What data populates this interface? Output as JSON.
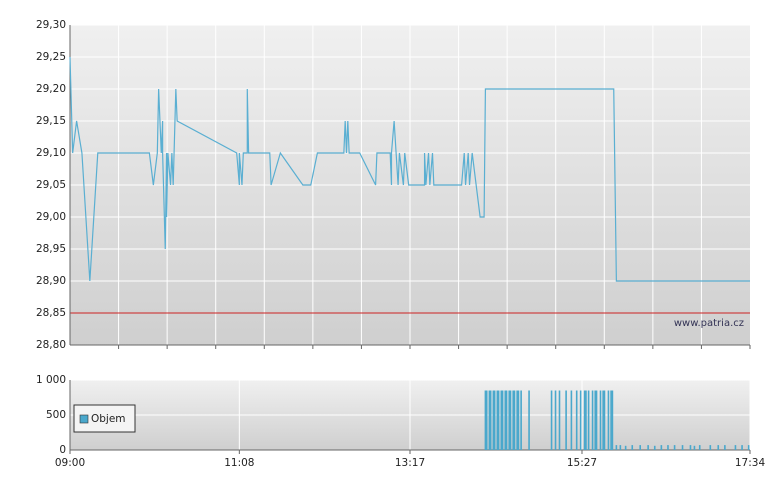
{
  "chart_data": [
    {
      "type": "line",
      "color": "#5aafd2",
      "xlim": [
        "09:00",
        "17:34"
      ],
      "ylim": [
        28.8,
        29.3
      ],
      "yticks": [
        {
          "value": 28.8,
          "label": "28,80"
        },
        {
          "value": 28.85,
          "label": "28,85"
        },
        {
          "value": 28.9,
          "label": "28,90"
        },
        {
          "value": 28.95,
          "label": "28,95"
        },
        {
          "value": 29.0,
          "label": "29,00"
        },
        {
          "value": 29.05,
          "label": "29,05"
        },
        {
          "value": 29.1,
          "label": "29,10"
        },
        {
          "value": 29.15,
          "label": "29,15"
        },
        {
          "value": 29.2,
          "label": "29,20"
        },
        {
          "value": 29.25,
          "label": "29,25"
        },
        {
          "value": 29.3,
          "label": "29,30"
        }
      ],
      "grid": true,
      "reference_line": {
        "value": 28.85,
        "color": "#cc2222"
      },
      "watermark": "www.patria.cz",
      "x": [
        "09:00",
        "09:02",
        "09:05",
        "09:09",
        "09:15",
        "09:21",
        "10:00",
        "10:03",
        "10:06",
        "10:07",
        "10:09",
        "10:10",
        "10:10",
        "10:12",
        "10:13",
        "10:13",
        "10:14",
        "10:16",
        "10:17",
        "10:18",
        "10:20",
        "10:21",
        "11:06",
        "11:08",
        "11:08",
        "11:10",
        "11:11",
        "11:14",
        "11:14",
        "11:15",
        "11:31",
        "11:32",
        "11:39",
        "11:56",
        "12:02",
        "12:07",
        "12:27",
        "12:28",
        "12:29",
        "12:30",
        "12:31",
        "12:39",
        "12:51",
        "12:52",
        "13:02",
        "13:03",
        "13:03",
        "13:05",
        "13:08",
        "13:09",
        "13:12",
        "13:13",
        "13:16",
        "13:28",
        "13:28",
        "13:29",
        "13:31",
        "13:32",
        "13:34",
        "13:35",
        "13:56",
        "13:58",
        "13:59",
        "14:01",
        "14:02",
        "14:04",
        "14:07",
        "14:10",
        "14:13",
        "14:14",
        "15:51",
        "15:53",
        "17:34"
      ],
      "values": [
        29.25,
        29.1,
        29.15,
        29.1,
        28.9,
        29.1,
        29.1,
        29.05,
        29.1,
        29.2,
        29.1,
        29.15,
        29.1,
        28.95,
        29.1,
        29.0,
        29.1,
        29.05,
        29.1,
        29.05,
        29.2,
        29.15,
        29.1,
        29.05,
        29.1,
        29.05,
        29.1,
        29.1,
        29.2,
        29.1,
        29.1,
        29.05,
        29.1,
        29.05,
        29.05,
        29.1,
        29.1,
        29.15,
        29.1,
        29.15,
        29.1,
        29.1,
        29.05,
        29.1,
        29.1,
        29.05,
        29.1,
        29.15,
        29.05,
        29.1,
        29.05,
        29.1,
        29.05,
        29.05,
        29.1,
        29.05,
        29.1,
        29.05,
        29.1,
        29.05,
        29.05,
        29.1,
        29.05,
        29.1,
        29.05,
        29.1,
        29.05,
        29.0,
        29.0,
        29.2,
        29.2,
        28.9,
        28.9
      ]
    },
    {
      "type": "bar",
      "xlim": [
        "09:00",
        "17:34"
      ],
      "xticks": [
        "09:00",
        "11:08",
        "13:17",
        "15:27",
        "17:34"
      ],
      "ylim": [
        0,
        1000
      ],
      "yticks": [
        0,
        500,
        {
          "value": 1000,
          "label": "1 000"
        }
      ],
      "grid": true,
      "legend": "left",
      "x": [
        "14:14",
        "14:15",
        "14:17",
        "14:18",
        "14:20",
        "14:21",
        "14:23",
        "14:24",
        "14:26",
        "14:27",
        "14:29",
        "14:30",
        "14:32",
        "14:33",
        "14:35",
        "14:36",
        "14:38",
        "14:39",
        "14:41",
        "14:47",
        "15:04",
        "15:07",
        "15:10",
        "15:15",
        "15:19",
        "15:23",
        "15:26",
        "15:29",
        "15:30",
        "15:32",
        "15:35",
        "15:37",
        "15:38",
        "15:41",
        "15:43",
        "15:44",
        "15:47",
        "15:49",
        "15:50",
        "15:53",
        "15:56",
        "16:00",
        "16:05",
        "16:11",
        "16:17",
        "16:22",
        "16:27",
        "16:32",
        "16:37",
        "16:43",
        "16:49",
        "16:52",
        "16:56",
        "17:04",
        "17:10",
        "17:15",
        "17:23",
        "17:28",
        "17:33"
      ],
      "series": [
        {
          "name": "Objem",
          "color": "#4aa8cc",
          "values": [
            850,
            850,
            850,
            850,
            850,
            850,
            850,
            850,
            850,
            850,
            850,
            850,
            850,
            850,
            850,
            850,
            850,
            850,
            850,
            850,
            850,
            850,
            850,
            850,
            850,
            850,
            850,
            850,
            850,
            850,
            850,
            850,
            850,
            850,
            850,
            850,
            850,
            850,
            850,
            70,
            70,
            60,
            70,
            70,
            70,
            60,
            70,
            70,
            70,
            70,
            70,
            60,
            70,
            70,
            70,
            70,
            70,
            70,
            70
          ]
        }
      ]
    }
  ]
}
